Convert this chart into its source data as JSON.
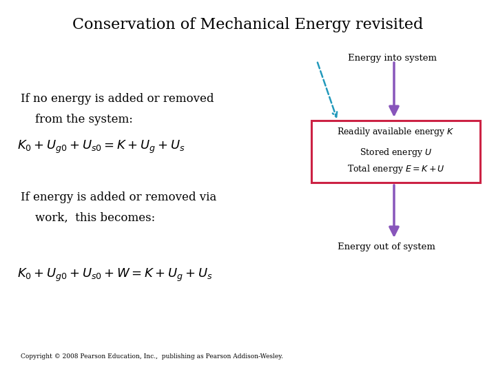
{
  "title": "Conservation of Mechanical Energy revisited",
  "title_fontsize": 16,
  "background_color": "#ffffff",
  "text_color": "#000000",
  "line1": "If no energy is added or removed",
  "line2": "    from the system:",
  "eq1": "$K_0 + U_{g0} + U_{s0} = K + U_g + U_s$",
  "line3": "If energy is added or removed via",
  "line4": "    work,  this becomes:",
  "eq2": "$K_0 + U_{g0} + U_{s0} + W = K + U_g + U_s$",
  "copyright": "Copyright © 2008 Pearson Education, Inc.,  publishing as Pearson Addison-Wesley.",
  "box_label1": "Readily available energy $K$",
  "box_label2": "Stored energy $U$",
  "box_label3": "Total energy $E = K + U$",
  "arrow_label_top": "Energy into system",
  "arrow_label_bottom": "Energy out of system",
  "box_color": "#cc2244",
  "arrow_color": "#8855bb",
  "dashed_arrow_color": "#2299bb",
  "text_fontsize": 12,
  "eq_fontsize": 13
}
